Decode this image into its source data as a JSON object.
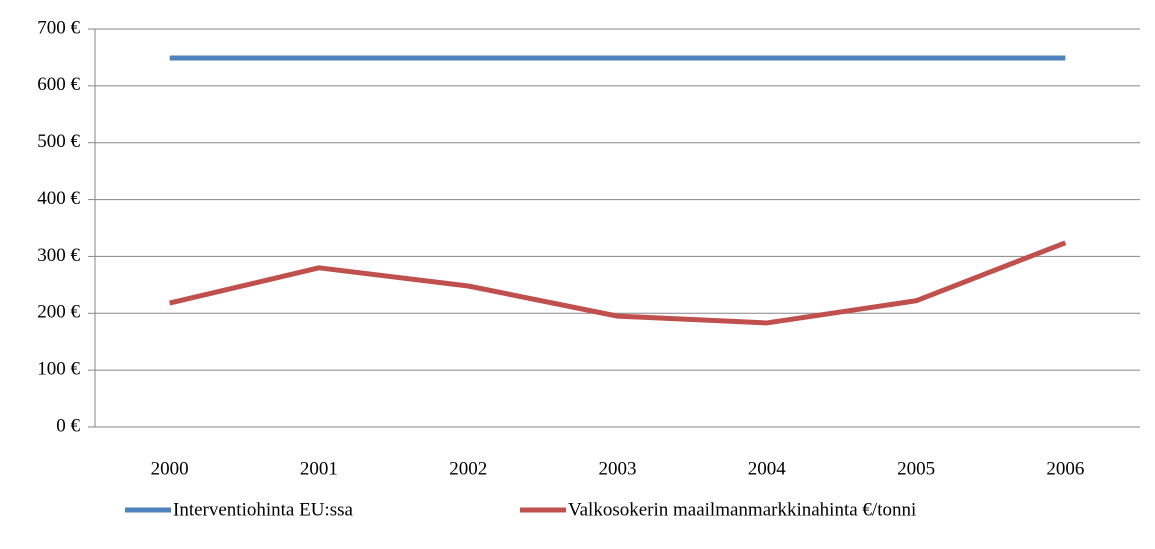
{
  "chart_data": {
    "type": "line",
    "categories": [
      "2000",
      "2001",
      "2002",
      "2003",
      "2004",
      "2005",
      "2006"
    ],
    "series": [
      {
        "name": "Interventiohinta EU:ssa",
        "color": "#4f81bd",
        "values": [
          649,
          649,
          649,
          649,
          649,
          649,
          649
        ]
      },
      {
        "name": "Valkosokerin maailmanmarkkinahinta €/tonni",
        "color": "#c0504d",
        "values": [
          218,
          280,
          248,
          195,
          183,
          222,
          324
        ]
      }
    ],
    "ylim": [
      0,
      700
    ],
    "yticks": [
      {
        "value": 0,
        "label": "0 €"
      },
      {
        "value": 100,
        "label": "100 €"
      },
      {
        "value": 200,
        "label": "200 €"
      },
      {
        "value": 300,
        "label": "300 €"
      },
      {
        "value": 400,
        "label": "400 €"
      },
      {
        "value": 500,
        "label": "500 €"
      },
      {
        "value": 600,
        "label": "600 €"
      },
      {
        "value": 700,
        "label": "700 €"
      }
    ],
    "grid": true,
    "legend": "bottom"
  }
}
